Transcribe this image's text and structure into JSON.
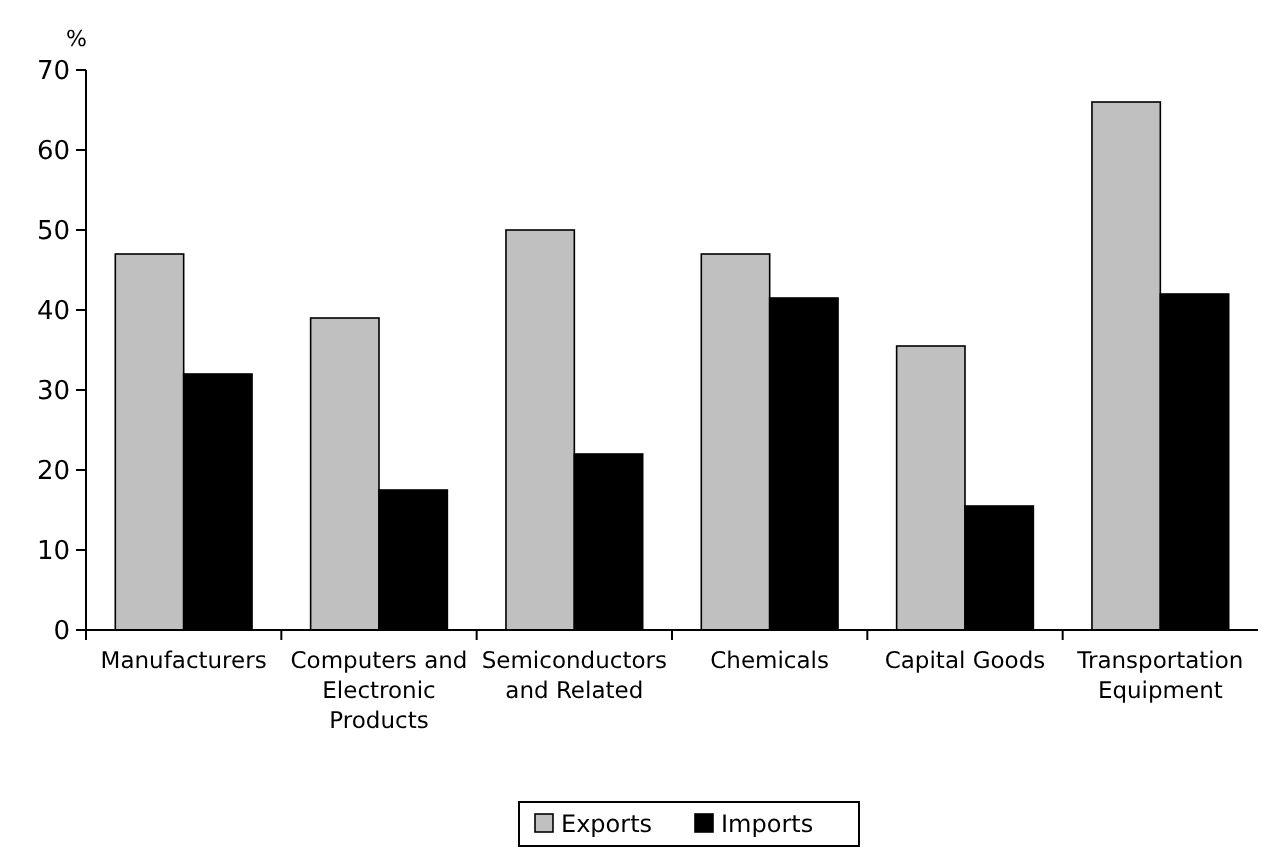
{
  "chart_data": {
    "type": "bar",
    "ylabel": "%",
    "categories": [
      "Manufacturers",
      "Computers and Electronic Products",
      "Semiconductors and Related",
      "Chemicals",
      "Capital Goods",
      "Transportation Equipment"
    ],
    "series": [
      {
        "name": "Exports",
        "color": "#c0c0c0",
        "values": [
          47,
          39,
          50,
          47,
          35.5,
          66
        ]
      },
      {
        "name": "Imports",
        "color": "#000000",
        "values": [
          32,
          17.5,
          22,
          41.5,
          15.5,
          42
        ]
      }
    ],
    "ylim": [
      0,
      70
    ],
    "yticks": [
      0,
      10,
      20,
      30,
      40,
      50,
      60,
      70
    ],
    "grid": false,
    "legend": "bottom"
  }
}
